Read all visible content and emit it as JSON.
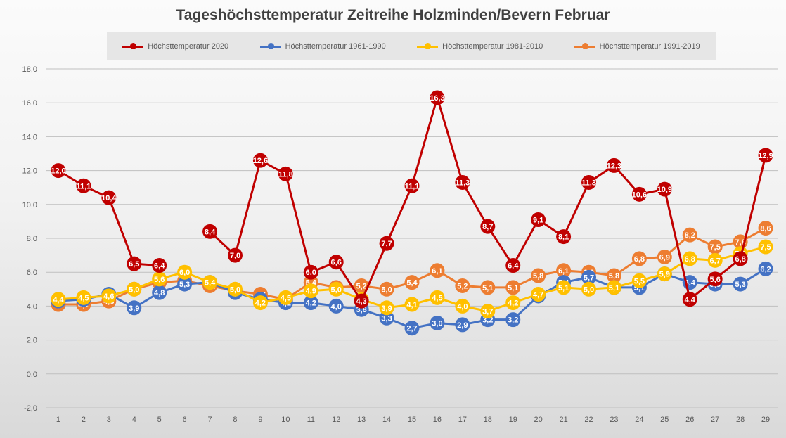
{
  "chart_data": {
    "type": "line",
    "title": "Tageshöchsttemperatur Zeitreihe Holzminden/Bevern Februar",
    "xlabel": "",
    "ylabel": "",
    "ylim": [
      -2.0,
      18.0
    ],
    "y_ticks": [
      "-2,0",
      "0,0",
      "2,0",
      "4,0",
      "6,0",
      "8,0",
      "10,0",
      "12,0",
      "14,0",
      "16,0",
      "18,0"
    ],
    "y_tick_values": [
      -2,
      0,
      2,
      4,
      6,
      8,
      10,
      12,
      14,
      16,
      18
    ],
    "categories": [
      "1",
      "2",
      "3",
      "4",
      "5",
      "6",
      "7",
      "8",
      "9",
      "10",
      "11",
      "12",
      "13",
      "14",
      "15",
      "16",
      "17",
      "18",
      "19",
      "20",
      "21",
      "22",
      "23",
      "24",
      "25",
      "26",
      "27",
      "28",
      "29"
    ],
    "grid": true,
    "legend_position": "top",
    "series": [
      {
        "name": "Höchsttemperatur 1991-2019",
        "color": "#ed7d31",
        "values": [
          4.1,
          4.1,
          4.3,
          5.0,
          5.4,
          5.5,
          5.2,
          4.9,
          4.7,
          4.4,
          5.4,
          5.1,
          5.2,
          5.0,
          5.4,
          6.1,
          5.2,
          5.1,
          5.1,
          5.8,
          6.1,
          6.0,
          5.8,
          6.8,
          6.9,
          8.2,
          7.5,
          7.8,
          8.6
        ]
      },
      {
        "name": "Höchsttemperatur 1961-1990",
        "color": "#4472c4",
        "values": [
          4.3,
          4.4,
          4.7,
          3.9,
          4.8,
          5.3,
          5.4,
          4.8,
          4.4,
          4.2,
          4.2,
          4.0,
          3.8,
          3.3,
          2.7,
          3.0,
          2.9,
          3.2,
          3.2,
          4.6,
          5.4,
          5.7,
          5.1,
          5.1,
          5.9,
          5.4,
          5.3,
          5.3,
          6.2
        ]
      },
      {
        "name": "Höchsttemperatur 1981-2010",
        "color": "#ffc000",
        "values": [
          4.4,
          4.5,
          4.6,
          5.0,
          5.6,
          6.0,
          5.4,
          5.0,
          4.2,
          4.5,
          4.9,
          5.0,
          4.4,
          3.9,
          4.1,
          4.5,
          4.0,
          3.7,
          4.2,
          4.7,
          5.1,
          5.0,
          5.1,
          5.5,
          5.9,
          6.8,
          6.7,
          7.1,
          7.5
        ]
      },
      {
        "name": "Höchsttemperatur 2020",
        "color": "#c00000",
        "values": [
          12.0,
          11.1,
          10.4,
          6.5,
          6.4,
          null,
          8.4,
          7.0,
          12.6,
          11.8,
          6.0,
          6.6,
          4.3,
          7.7,
          11.1,
          16.3,
          11.3,
          8.7,
          6.4,
          9.1,
          8.1,
          11.3,
          12.3,
          10.6,
          10.9,
          4.4,
          5.6,
          6.8,
          12.9
        ]
      }
    ],
    "legend_order": [
      3,
      1,
      2,
      0
    ]
  }
}
